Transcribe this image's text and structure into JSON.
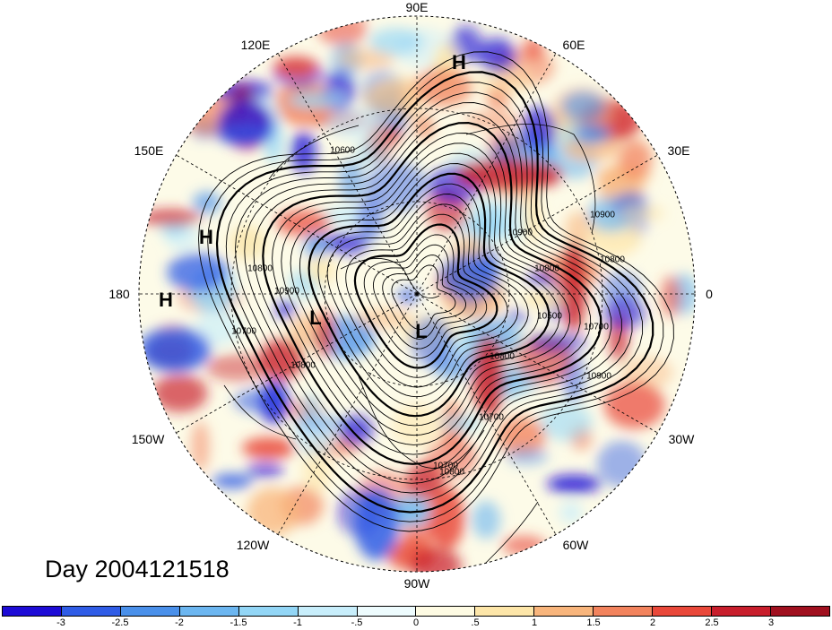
{
  "map": {
    "projection": "north-polar-stereographic",
    "longitude_labels": [
      {
        "text": "90E"
      },
      {
        "text": "60E"
      },
      {
        "text": "30E"
      },
      {
        "text": "0"
      },
      {
        "text": "30W"
      },
      {
        "text": "60W"
      },
      {
        "text": "90W"
      },
      {
        "text": "120W"
      },
      {
        "text": "150W"
      },
      {
        "text": "180"
      },
      {
        "text": "150E"
      },
      {
        "text": "120E"
      }
    ],
    "pressure_centers": [
      "H",
      "H",
      "H",
      "L",
      "L"
    ],
    "contour_labels": [
      "10600",
      "10700",
      "10800",
      "10900",
      "10800",
      "10900",
      "10800",
      "10900",
      "10700",
      "10800",
      "10700",
      "10500",
      "10700",
      "10800",
      "10800",
      "10900"
    ],
    "colors": {
      "ocean_land_neutral": "#fdfbe8",
      "contour": "#000000",
      "grid": "#000000"
    }
  },
  "title": "Day 2004121518",
  "colorbar": {
    "colors": [
      "#1d0bd6",
      "#2f5ce6",
      "#4a90ea",
      "#6cb6f0",
      "#93d6f6",
      "#c8eefb",
      "#eefcfe",
      "#fefbe3",
      "#fde6a9",
      "#f8b57c",
      "#f2835d",
      "#e9483a",
      "#c81e2c",
      "#a0101f"
    ],
    "tick_labels": [
      "-3",
      "-2.5",
      "-2",
      "-1.5",
      "-1",
      "-.5",
      "0",
      ".5",
      "1",
      "1.5",
      "2",
      "2.5",
      "3"
    ]
  }
}
